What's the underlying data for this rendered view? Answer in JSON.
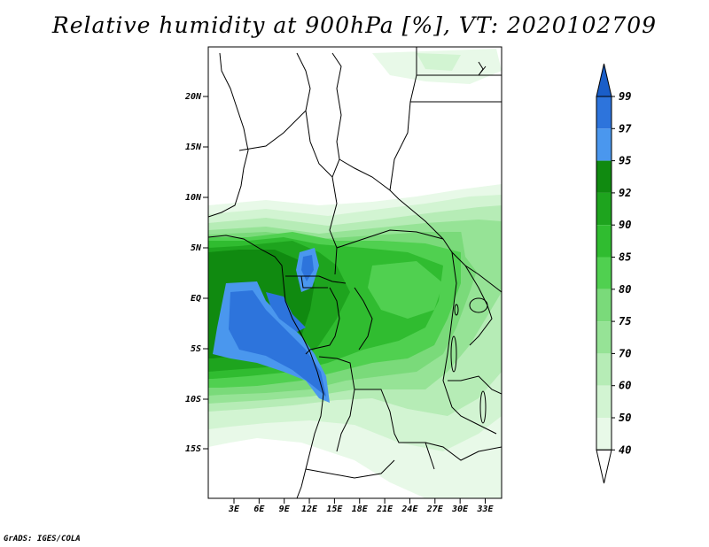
{
  "title": "Relative humidity at 900hPa [%], VT: 2020102709",
  "credit": "GrADS: IGES/COLA",
  "map": {
    "lat_labels": [
      "20N",
      "15N",
      "10N",
      "5N",
      "EQ",
      "5S",
      "10S",
      "15S"
    ],
    "lon_labels": [
      "3E",
      "6E",
      "9E",
      "12E",
      "15E",
      "18E",
      "21E",
      "24E",
      "27E",
      "30E",
      "33E"
    ],
    "field": "relative humidity",
    "level": "900hPa",
    "unit": "%"
  },
  "colorbar": {
    "levels": [
      "99",
      "97",
      "95",
      "92",
      "90",
      "85",
      "80",
      "75",
      "70",
      "60",
      "50",
      "40"
    ],
    "colors": {
      "gt99": "#1a5ec8",
      "97_99": "#2d74dc",
      "95_97": "#4a97ee",
      "92_95": "#108a10",
      "90_92": "#1ea41e",
      "85_90": "#30bc30",
      "80_85": "#50d050",
      "75_80": "#7ada7a",
      "70_75": "#96e396",
      "60_70": "#b6ecb6",
      "50_60": "#d2f4d2",
      "40_50": "#e8f9e8",
      "lt40": "#ffffff"
    }
  }
}
